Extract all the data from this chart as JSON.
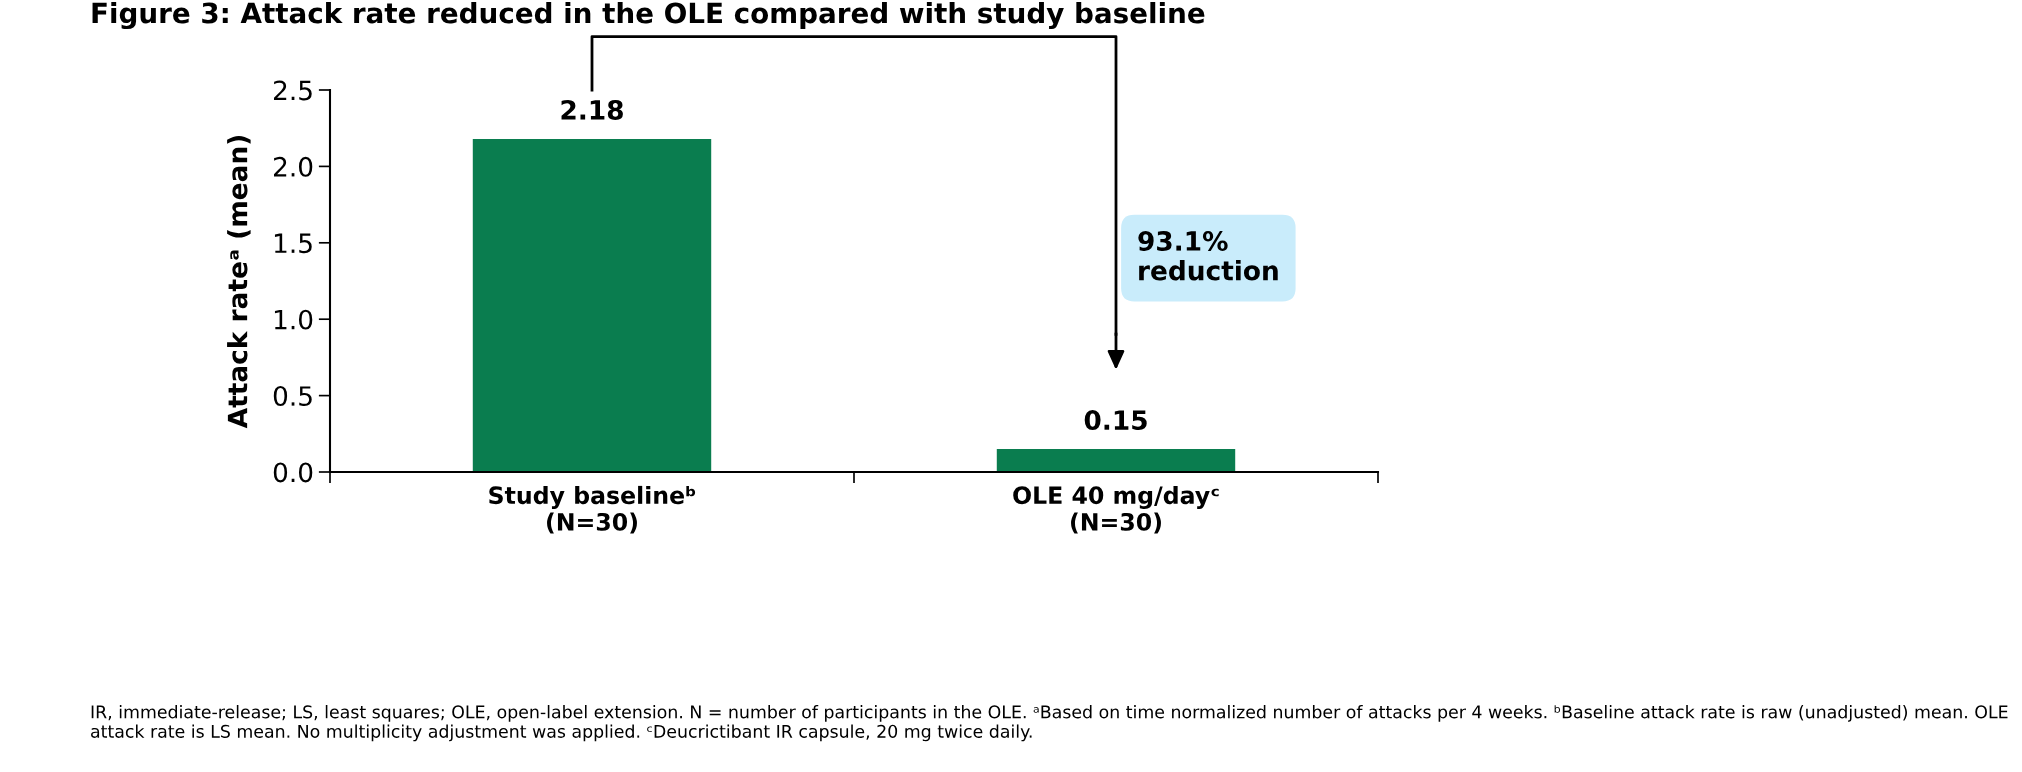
{
  "chart_data": {
    "type": "bar",
    "title": "Figure 3: Attack rate reduced in the OLE compared with study baseline",
    "ylabel": "Attack rateᵃ (mean)",
    "categories": [
      "Study baselineᵇ\n(N=30)",
      "OLE 40 mg/dayᶜ\n(N=30)"
    ],
    "values": [
      2.18,
      0.15
    ],
    "colors": [
      "#0a7d4f",
      "#0a7d4f"
    ],
    "data_labels": true,
    "ylim": [
      0,
      2.5
    ],
    "yticks": [
      {
        "value": 0,
        "label": "0.0"
      },
      {
        "value": 0.5,
        "label": "0.5"
      },
      {
        "value": 1,
        "label": "1.0"
      },
      {
        "value": 1.5,
        "label": "1.5"
      },
      {
        "value": 2,
        "label": "2.0"
      },
      {
        "value": 2.5,
        "label": "2.5"
      }
    ],
    "grid": false,
    "annotations": [
      "93.1%\nreduction",
      "IR, immediate-release; LS, least squares; OLE, open-label extension. N = number of participants in the OLE. ᵃBased on time normalized number of attacks per 4 weeks. ᵇBaseline attack rate is raw (unadjusted) mean. OLE attack rate is LS mean. No multiplicity adjustment was applied. ᶜDeucrictibant IR capsule, 20 mg twice daily."
    ]
  }
}
